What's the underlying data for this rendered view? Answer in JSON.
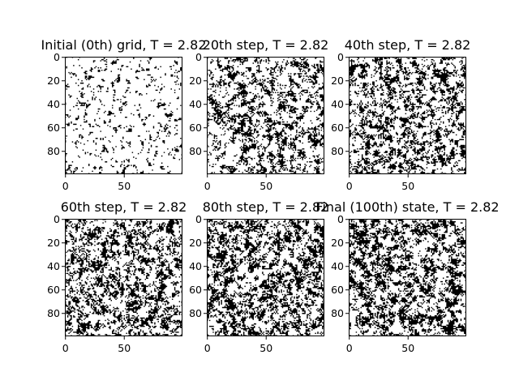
{
  "chart_data": {
    "type": "heatmap",
    "colormap": "binary",
    "colors": {
      "spin_up": "#ffffff",
      "spin_down": "#000000",
      "frame": "#000000"
    },
    "grid_size": 100,
    "xlim": [
      0,
      99
    ],
    "ylim": [
      99,
      0
    ],
    "xticks": [
      0,
      50
    ],
    "yticks": [
      0,
      20,
      40,
      60,
      80
    ],
    "temperature": 2.82,
    "panels": [
      {
        "title": "Initial (0th) grid, T = 2.82",
        "step": 0,
        "down_fraction": 0.1
      },
      {
        "title": "20th step, T = 2.82",
        "step": 20,
        "down_fraction": 0.3
      },
      {
        "title": "40th step, T = 2.82",
        "step": 40,
        "down_fraction": 0.34
      },
      {
        "title": "60th step, T = 2.82",
        "step": 60,
        "down_fraction": 0.36
      },
      {
        "title": "80th step, T = 2.82",
        "step": 80,
        "down_fraction": 0.4
      },
      {
        "title": "Final (100th) state, T = 2.82",
        "step": 100,
        "down_fraction": 0.4
      }
    ]
  }
}
